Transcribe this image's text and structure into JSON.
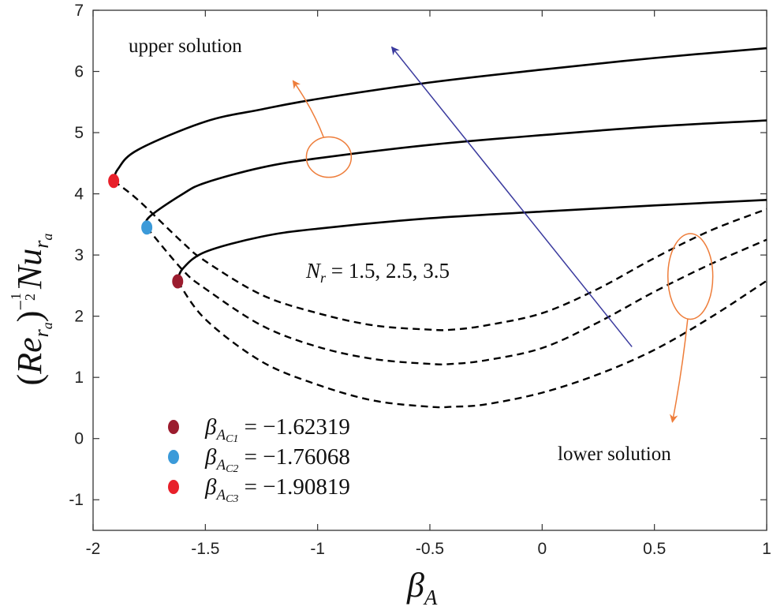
{
  "chart_data": {
    "type": "line",
    "title": "",
    "xlabel": "β",
    "xlabel_sub": "A",
    "ylabel": {
      "open": "(",
      "re": "Re",
      "re_sub": "r",
      "re_subsub": "a",
      "close": ")",
      "exp_sign": "−",
      "exp_num": "1",
      "exp_den": "2",
      "nu": "Nu",
      "nu_sub": "r",
      "nu_subsub": "a"
    },
    "xlim": [
      -2,
      1
    ],
    "ylim": [
      -1.5,
      7
    ],
    "x_ticks": [
      "-2",
      "-1.5",
      "-1",
      "-0.5",
      "0",
      "0.5",
      "1"
    ],
    "y_ticks": [
      "-1",
      "0",
      "1",
      "2",
      "3",
      "4",
      "5",
      "6",
      "7"
    ],
    "annotations": {
      "upper": "upper solution",
      "lower": "lower solution",
      "nr_label": "N",
      "nr_sub": "r",
      "nr_values": " = 1.5, 2.5, 3.5"
    },
    "series": [
      {
        "name": "N_r = 1.5",
        "critical_x": -1.62319,
        "critical_y": 2.57,
        "upper": {
          "x": [
            -1.62319,
            -1.6,
            -1.5,
            -1.25,
            -1.0,
            -0.5,
            0,
            0.5,
            1.0
          ],
          "y": [
            2.57,
            2.78,
            3.05,
            3.3,
            3.43,
            3.6,
            3.71,
            3.81,
            3.9
          ]
        },
        "lower": {
          "x": [
            -1.62319,
            -1.5,
            -1.25,
            -1.0,
            -0.75,
            -0.5,
            -0.4,
            -0.25,
            0,
            0.25,
            0.5,
            0.75,
            1.0
          ],
          "y": [
            2.57,
            1.95,
            1.26,
            0.88,
            0.62,
            0.52,
            0.52,
            0.56,
            0.75,
            1.05,
            1.45,
            1.98,
            2.58
          ]
        }
      },
      {
        "name": "N_r = 2.5",
        "critical_x": -1.76068,
        "critical_y": 3.45,
        "upper": {
          "x": [
            -1.76068,
            -1.75,
            -1.6,
            -1.5,
            -1.25,
            -1.0,
            -0.5,
            0,
            0.5,
            1.0
          ],
          "y": [
            3.45,
            3.62,
            4.0,
            4.18,
            4.43,
            4.58,
            4.8,
            4.96,
            5.1,
            5.2
          ]
        },
        "lower": {
          "x": [
            -1.76068,
            -1.6,
            -1.5,
            -1.25,
            -1.0,
            -0.75,
            -0.5,
            -0.4,
            -0.25,
            0,
            0.25,
            0.5,
            0.75,
            1.0
          ],
          "y": [
            3.45,
            2.75,
            2.45,
            1.85,
            1.5,
            1.3,
            1.22,
            1.22,
            1.28,
            1.48,
            1.9,
            2.4,
            2.85,
            3.25
          ]
        }
      },
      {
        "name": "N_r = 3.5",
        "critical_x": -1.90819,
        "critical_y": 4.21,
        "upper": {
          "x": [
            -1.90819,
            -1.89,
            -1.8,
            -1.5,
            -1.25,
            -1.0,
            -0.5,
            0,
            0.5,
            1.0
          ],
          "y": [
            4.21,
            4.4,
            4.72,
            5.18,
            5.38,
            5.55,
            5.82,
            6.03,
            6.22,
            6.38
          ]
        },
        "lower": {
          "x": [
            -1.90819,
            -1.8,
            -1.6,
            -1.5,
            -1.25,
            -1.0,
            -0.75,
            -0.5,
            -0.4,
            -0.25,
            0,
            0.25,
            0.5,
            0.75,
            1.0
          ],
          "y": [
            4.21,
            3.9,
            3.2,
            2.9,
            2.35,
            2.05,
            1.85,
            1.78,
            1.78,
            1.85,
            2.05,
            2.45,
            2.95,
            3.4,
            3.75
          ]
        }
      }
    ],
    "critical_points": [
      {
        "label_main": "β",
        "label_sub": "A",
        "label_subsub": "C1",
        "value_text": " = −1.62319",
        "x": -1.62319,
        "y": 2.57,
        "color": "#9b1c2e"
      },
      {
        "label_main": "β",
        "label_sub": "A",
        "label_subsub": "C2",
        "value_text": " = −1.76068",
        "x": -1.76068,
        "y": 3.45,
        "color": "#3b9ad9"
      },
      {
        "label_main": "β",
        "label_sub": "A",
        "label_subsub": "C3",
        "value_text": " = −1.90819",
        "x": -1.90819,
        "y": 4.21,
        "color": "#e8202a"
      }
    ],
    "arrows": {
      "blue": {
        "from": [
          0.4,
          1.5
        ],
        "to": [
          -0.67,
          6.4
        ],
        "color": "#3a3a9e"
      },
      "upper_arrow": {
        "ellipse_center": [
          -0.95,
          4.6
        ],
        "ellipse_rx_units": 0.1,
        "ellipse_ry_units": 0.33,
        "to": [
          -1.11,
          5.85
        ],
        "color": "#ee7d3a"
      },
      "lower_arrow": {
        "ellipse_center": [
          0.66,
          2.65
        ],
        "ellipse_rx_units": 0.1,
        "ellipse_ry_units": 0.7,
        "to": [
          0.58,
          0.27
        ],
        "color": "#ee7d3a"
      }
    },
    "grid": false,
    "legend_position": "bottom-left"
  }
}
